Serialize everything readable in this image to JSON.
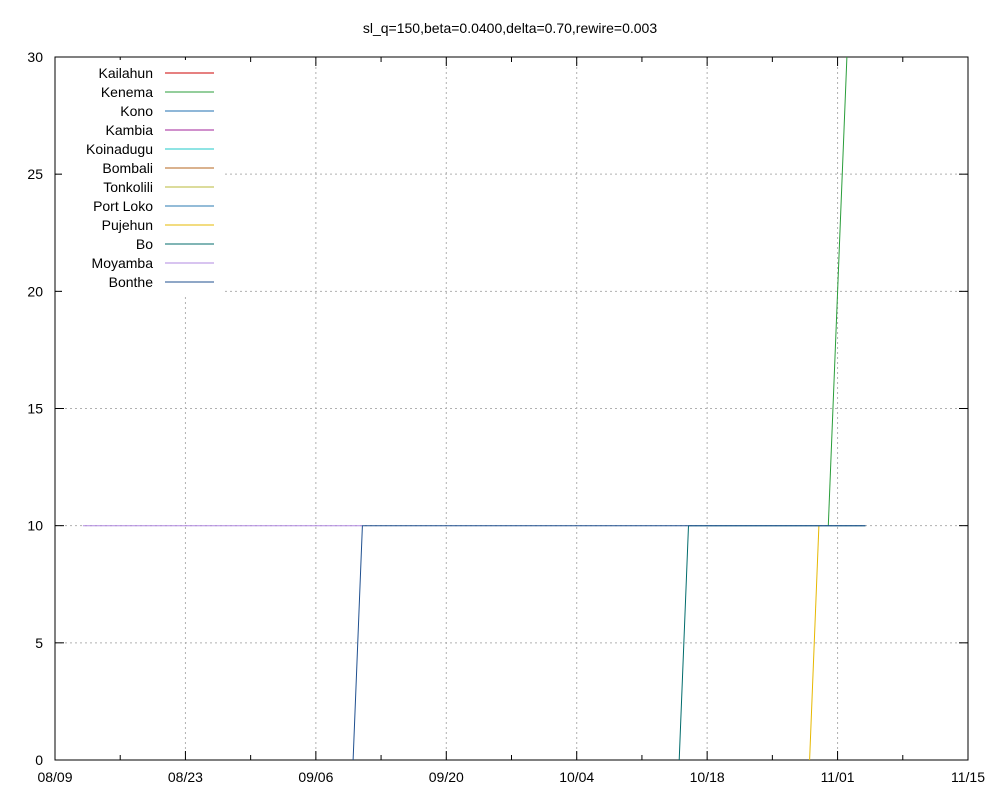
{
  "chart_data": {
    "type": "line",
    "title": "sl_q=150,beta=0.0400,delta=0.70,rewire=0.003",
    "xlabel": "",
    "ylabel": "",
    "x_axis_type": "date",
    "xlim": [
      "2014-08-09",
      "2014-11-15"
    ],
    "ylim": [
      0,
      30
    ],
    "x_ticks": [
      {
        "date": "2014-08-09",
        "label": "08/09"
      },
      {
        "date": "2014-08-23",
        "label": "08/23"
      },
      {
        "date": "2014-09-06",
        "label": "09/06"
      },
      {
        "date": "2014-09-20",
        "label": "09/20"
      },
      {
        "date": "2014-10-04",
        "label": "10/04"
      },
      {
        "date": "2014-10-18",
        "label": "10/18"
      },
      {
        "date": "2014-11-01",
        "label": "11/01"
      },
      {
        "date": "2014-11-15",
        "label": "11/15"
      }
    ],
    "x_minor_ticks": [
      "2014-08-16",
      "2014-08-30",
      "2014-09-13",
      "2014-09-27",
      "2014-10-11",
      "2014-10-25",
      "2014-11-08"
    ],
    "y_ticks": [
      0,
      5,
      10,
      15,
      20,
      25,
      30
    ],
    "y_tick_labels": [
      "0",
      "5",
      "10",
      "15",
      "20",
      "25",
      "30"
    ],
    "grid": true,
    "legend_position": "top-left",
    "series": [
      {
        "name": "Kailahun",
        "color": "#cc0000",
        "points": []
      },
      {
        "name": "Kenema",
        "color": "#2a9d3a",
        "points": [
          {
            "x": "2014-10-31",
            "y": 10
          },
          {
            "x": "2014-11-02",
            "y": 30
          }
        ]
      },
      {
        "name": "Kono",
        "color": "#1f6fb0",
        "points": []
      },
      {
        "name": "Kambia",
        "color": "#a0209a",
        "points": []
      },
      {
        "name": "Koinadugu",
        "color": "#1fc9c9",
        "points": []
      },
      {
        "name": "Bombali",
        "color": "#b5651d",
        "points": []
      },
      {
        "name": "Tonkolili",
        "color": "#b8b83a",
        "points": []
      },
      {
        "name": "Port Loko",
        "color": "#2a7ab0",
        "points": []
      },
      {
        "name": "Pujehun",
        "color": "#e6b800",
        "points": [
          {
            "x": "2014-10-29",
            "y": 0
          },
          {
            "x": "2014-10-30",
            "y": 10
          }
        ]
      },
      {
        "name": "Bo",
        "color": "#006b6b",
        "points": [
          {
            "x": "2014-10-15",
            "y": 0
          },
          {
            "x": "2014-10-16",
            "y": 10
          },
          {
            "x": "2014-11-04",
            "y": 10
          }
        ]
      },
      {
        "name": "Moyamba",
        "color": "#b088e0",
        "points": [
          {
            "x": "2014-08-12",
            "y": 10
          },
          {
            "x": "2014-09-11",
            "y": 10
          }
        ]
      },
      {
        "name": "Bonthe",
        "color": "#1f4f8f",
        "points": [
          {
            "x": "2014-09-10",
            "y": 0
          },
          {
            "x": "2014-09-11",
            "y": 10
          },
          {
            "x": "2014-11-04",
            "y": 10
          }
        ]
      }
    ]
  }
}
